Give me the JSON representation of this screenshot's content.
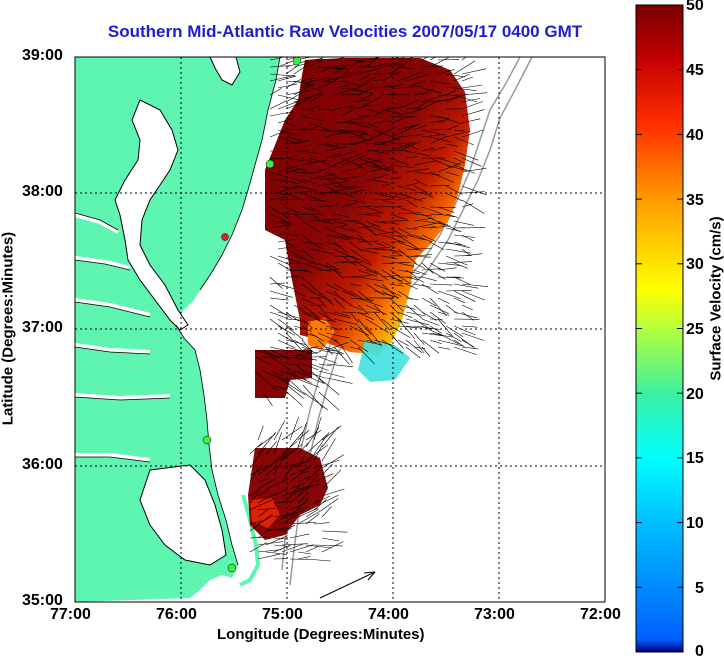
{
  "title": "Southern Mid-Atlantic Raw Velocities 2007/05/17 0400 GMT",
  "xlabel": "Longitude (Degrees:Minutes)",
  "ylabel": "Latitude (Degrees:Minutes)",
  "x_ticks": [
    "77:00",
    "76:00",
    "75:00",
    "74:00",
    "73:00",
    "72:00"
  ],
  "y_ticks": [
    "39:00",
    "38:00",
    "37:00",
    "36:00",
    "35:00"
  ],
  "colorbar": {
    "label": "Surface Velocity (cm/s)",
    "ticks": [
      "50",
      "45",
      "40",
      "35",
      "30",
      "25",
      "20",
      "15",
      "10",
      "5",
      "0"
    ],
    "range": [
      0,
      50
    ]
  },
  "colors": {
    "land": "#5ef5b0",
    "title": "#1d1dd6",
    "grid": "#000000",
    "bathymetry": "#9a9a9a"
  },
  "map_extent": {
    "lon": [
      -77,
      -72
    ],
    "lat": [
      35,
      39
    ]
  }
}
